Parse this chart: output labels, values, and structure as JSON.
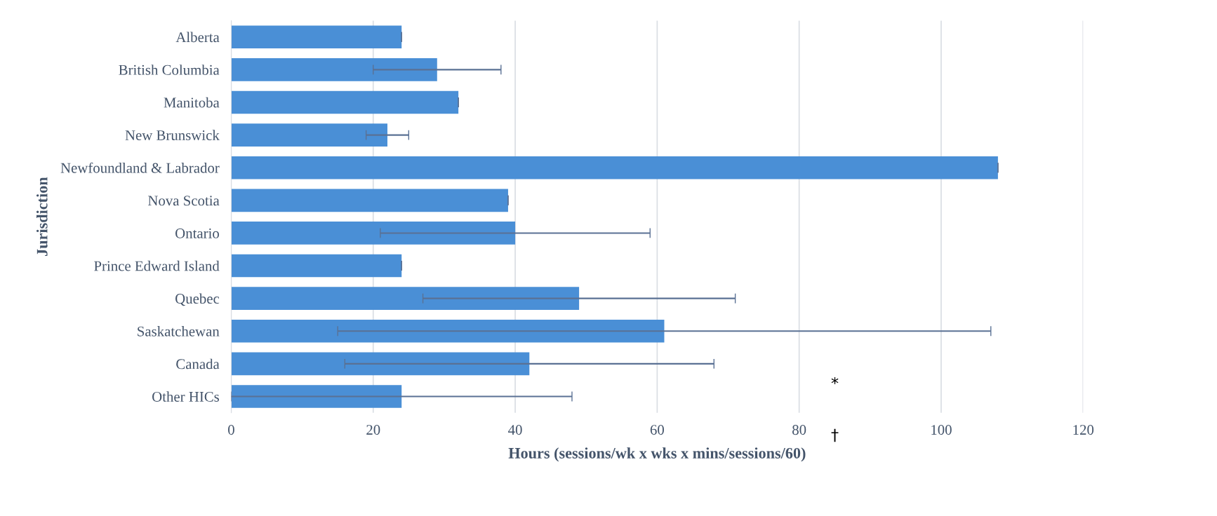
{
  "chart_data": {
    "type": "bar",
    "orientation": "horizontal",
    "xlabel": "Hours (sessions/wk x wks x mins/sessions/60)",
    "ylabel": "Jurisdiction",
    "categories": [
      "Alberta",
      "British Columbia",
      "Manitoba",
      "New Brunswick",
      "Newfoundland & Labrador",
      "Nova Scotia",
      "Ontario",
      "Prince Edward Island",
      "Quebec",
      "Saskatchewan",
      "Canada",
      "Other HICs"
    ],
    "values": [
      24,
      29,
      32,
      22,
      108,
      39,
      40,
      24,
      49,
      61,
      42,
      24
    ],
    "errors": [
      0,
      [
        20,
        38
      ],
      0,
      [
        19,
        25
      ],
      0,
      0,
      [
        21,
        59
      ],
      0,
      [
        27,
        71
      ],
      [
        15,
        107
      ],
      [
        16,
        68
      ],
      [
        0,
        48
      ]
    ],
    "color": "#4a8fd6",
    "xlim": [
      0,
      120
    ],
    "xticks": [
      0,
      20,
      40,
      60,
      80,
      100,
      120
    ],
    "grid": "x",
    "annotations": [
      "*",
      "†"
    ]
  }
}
